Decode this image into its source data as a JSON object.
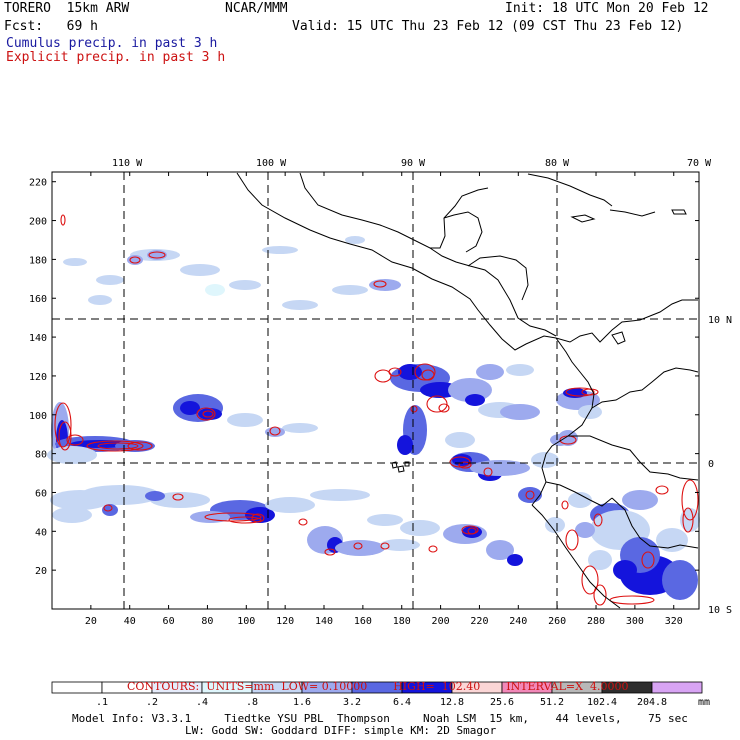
{
  "header": {
    "model": "TORERO  15km ARW",
    "org": "NCAR/MMM",
    "init": "Init: 18 UTC Mon 20 Feb 12",
    "fcst": "Fcst:   69 h",
    "valid": "Valid: 15 UTC Thu 23 Feb 12 (09 CST Thu 23 Feb 12)",
    "cumulus": "Cumulus precip. in past 3 h",
    "explicit": "Explicit precip. in past 3 h"
  },
  "colors": {
    "cumulus_text": "#1a1aa0",
    "explicit_text": "#cc1111",
    "contour": "#dd1111",
    "coast": "#000000"
  },
  "map": {
    "lon_labels": [
      "110 W",
      "100 W",
      "90 W",
      "80 W",
      "70 W"
    ],
    "lat_labels": [
      "10 N",
      "0",
      "10 S"
    ],
    "x_ticks": [
      "20",
      "40",
      "60",
      "80",
      "100",
      "120",
      "140",
      "160",
      "180",
      "200",
      "220",
      "240",
      "260",
      "280",
      "300",
      "320"
    ],
    "y_ticks": [
      "20",
      "40",
      "60",
      "80",
      "100",
      "120",
      "140",
      "160",
      "180",
      "200",
      "220"
    ]
  },
  "contours": {
    "units": "CONTOURS:  UNITS=mm  LOW= 0.10000",
    "high": "HIGH=  102.40",
    "interval": "INTERVAL=X  4.0000"
  },
  "colorbar": {
    "labels": [
      ".1",
      ".2",
      ".4",
      ".8",
      "1.6",
      "3.2",
      "6.4",
      "12.8",
      "25.6",
      "51.2",
      "102.4",
      "204.8"
    ],
    "unit": "mm",
    "colors": [
      "#ffffff",
      "#ffffff",
      "#e6ecfb",
      "#dff6fc",
      "#c6d7f4",
      "#9daaee",
      "#5a68e2",
      "#1414dc",
      "#fbd6d6",
      "#f288b8",
      "#b8b8b8",
      "#2e2e2e",
      "#d8a4f4"
    ]
  },
  "footer": {
    "line1": "Model Info: V3.3.1     Tiedtke YSU PBL  Thompson     Noah LSM  15 km,    44 levels,    75 sec",
    "line2": "LW: Godd SW: Goddard DIFF: simple KM: 2D Smagor"
  }
}
